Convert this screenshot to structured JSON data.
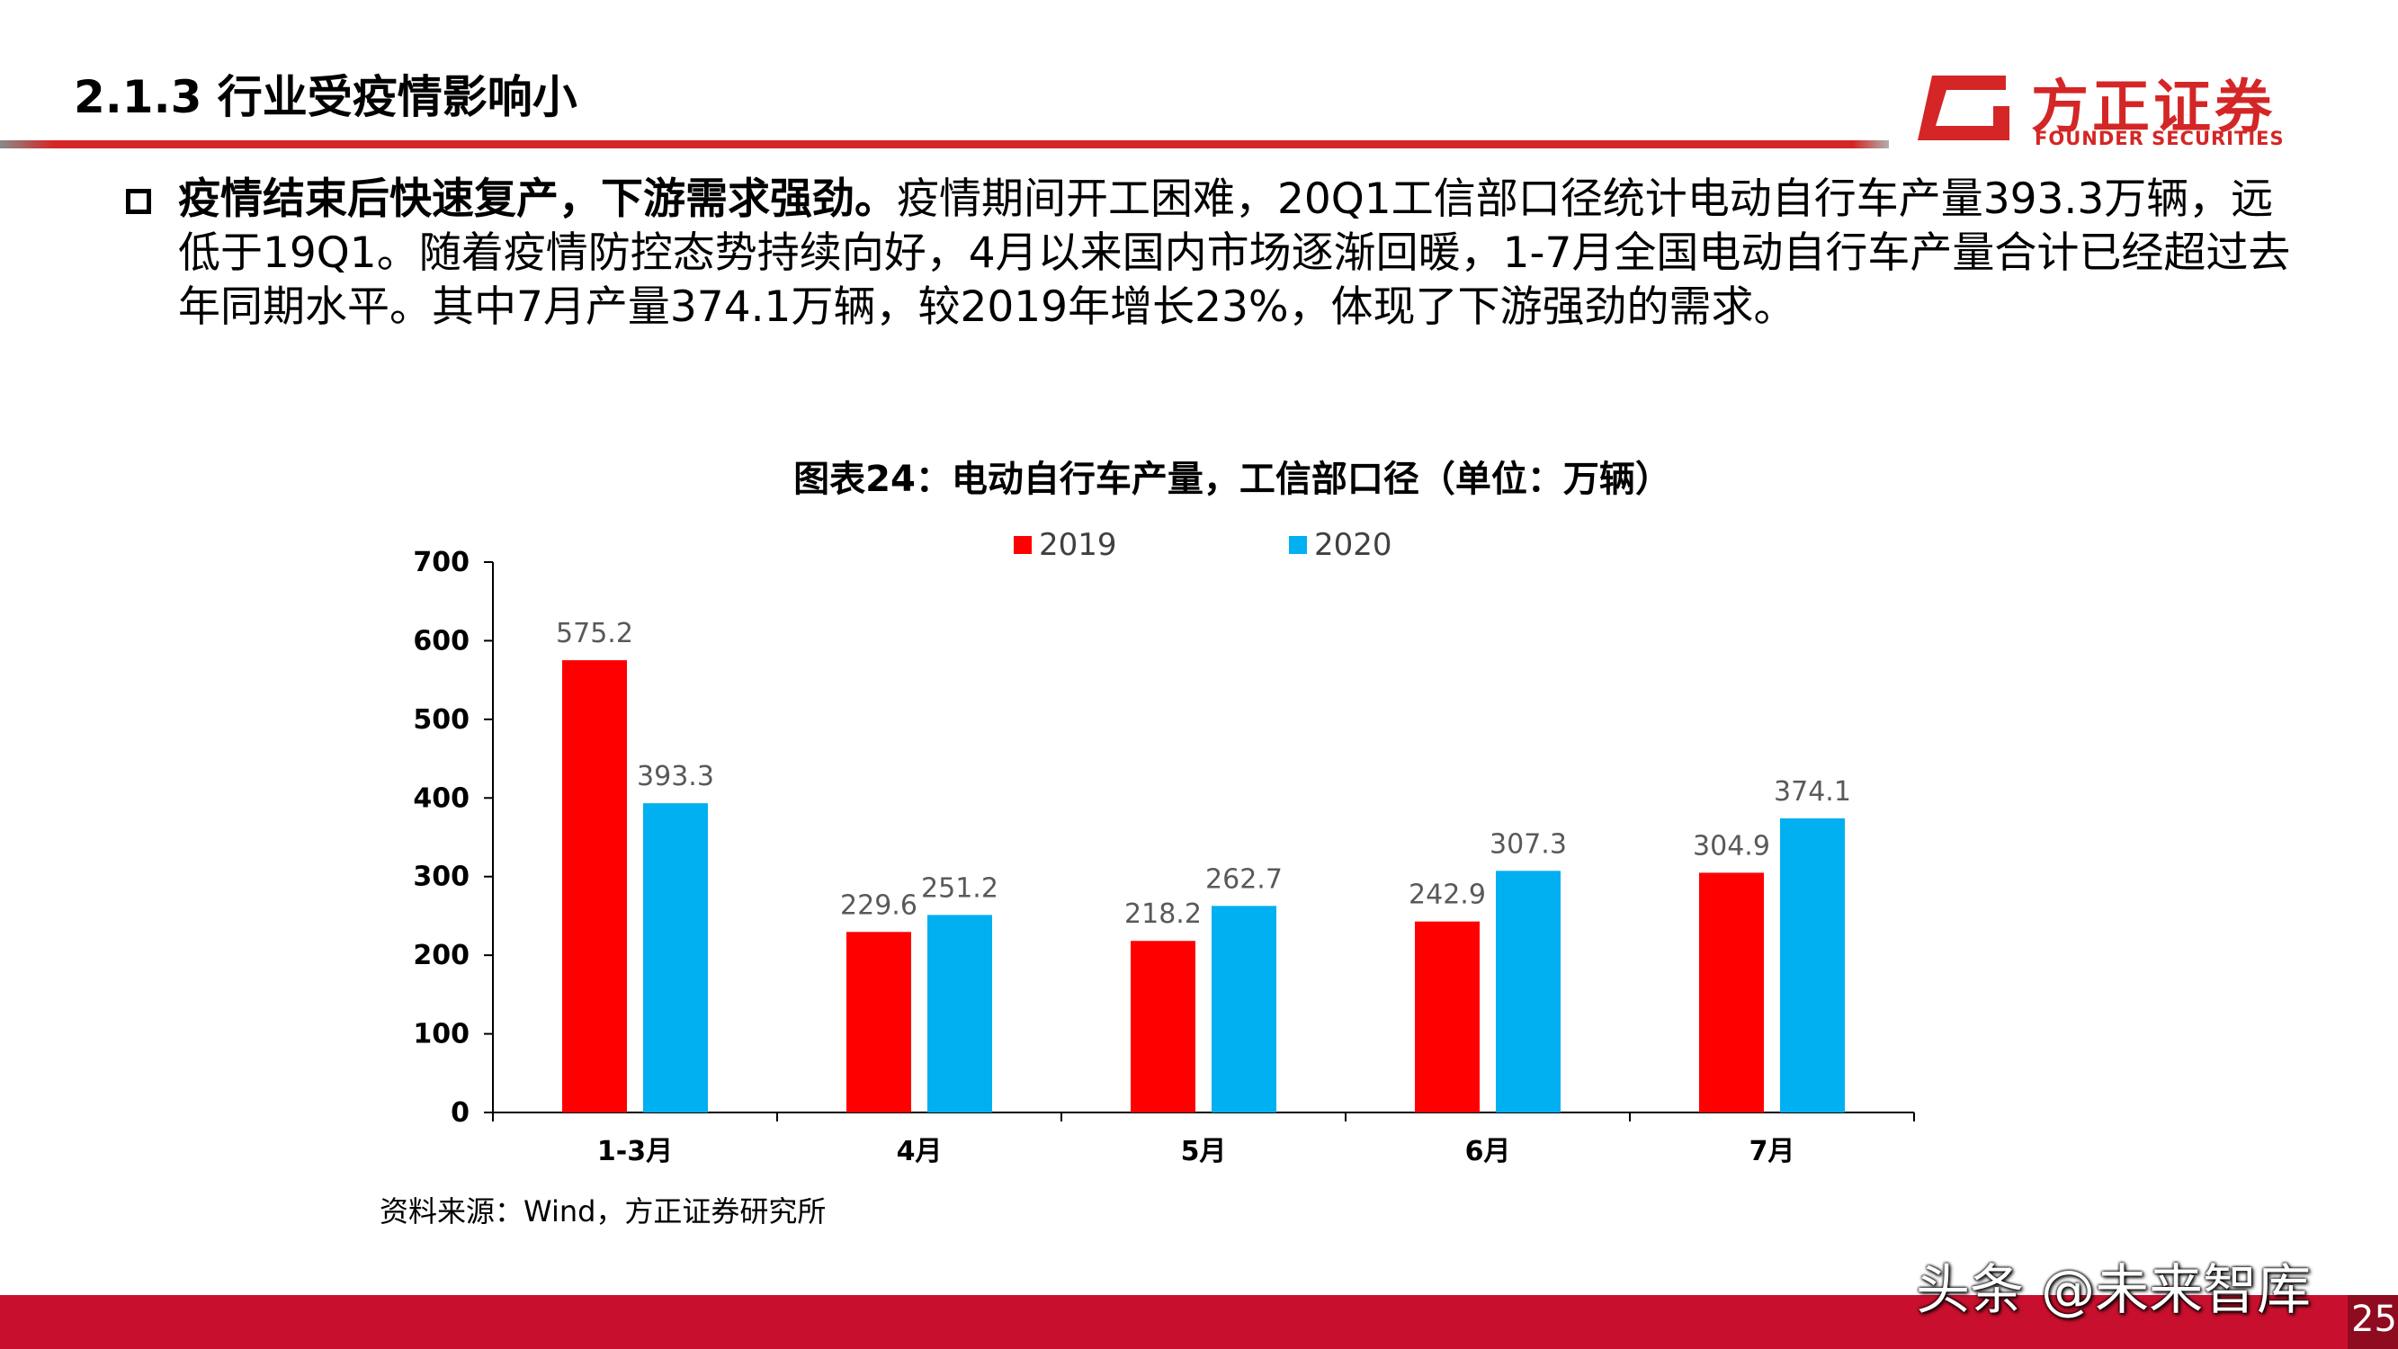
{
  "header": {
    "section_title": "2.1.3 行业受疫情影响小",
    "logo_cn": "方正证券",
    "logo_en": "FOUNDER SECURITIES"
  },
  "bullet": {
    "bold": "疫情结束后快速复产，下游需求强劲。",
    "text": "疫情期间开工困难，20Q1工信部口径统计电动自行车产量393.3万辆，远低于19Q1。随着疫情防控态势持续向好，4月以来国内市场逐渐回暖，1-7月全国电动自行车产量合计已经超过去年同期水平。其中7月产量374.1万辆，较2019年增长23%，体现了下游强劲的需求。"
  },
  "chart_data": {
    "type": "bar",
    "title": "图表24：电动自行车产量，工信部口径（单位：万辆）",
    "categories": [
      "1-3月",
      "4月",
      "5月",
      "6月",
      "7月"
    ],
    "series": [
      {
        "name": "2019",
        "color": "#ff0000",
        "values": [
          575.2,
          229.6,
          218.2,
          242.9,
          304.9
        ]
      },
      {
        "name": "2020",
        "color": "#00b0f0",
        "values": [
          393.3,
          251.2,
          262.7,
          307.3,
          374.1
        ]
      }
    ],
    "ylim": [
      0,
      700
    ],
    "yticks": [
      0,
      100,
      200,
      300,
      400,
      500,
      600,
      700
    ],
    "legend_position": "top",
    "grid": false,
    "xlabel": "",
    "ylabel": ""
  },
  "source": "资料来源：Wind，方正证券研究所",
  "watermark": "头条 @未来智库",
  "page_number": "25"
}
